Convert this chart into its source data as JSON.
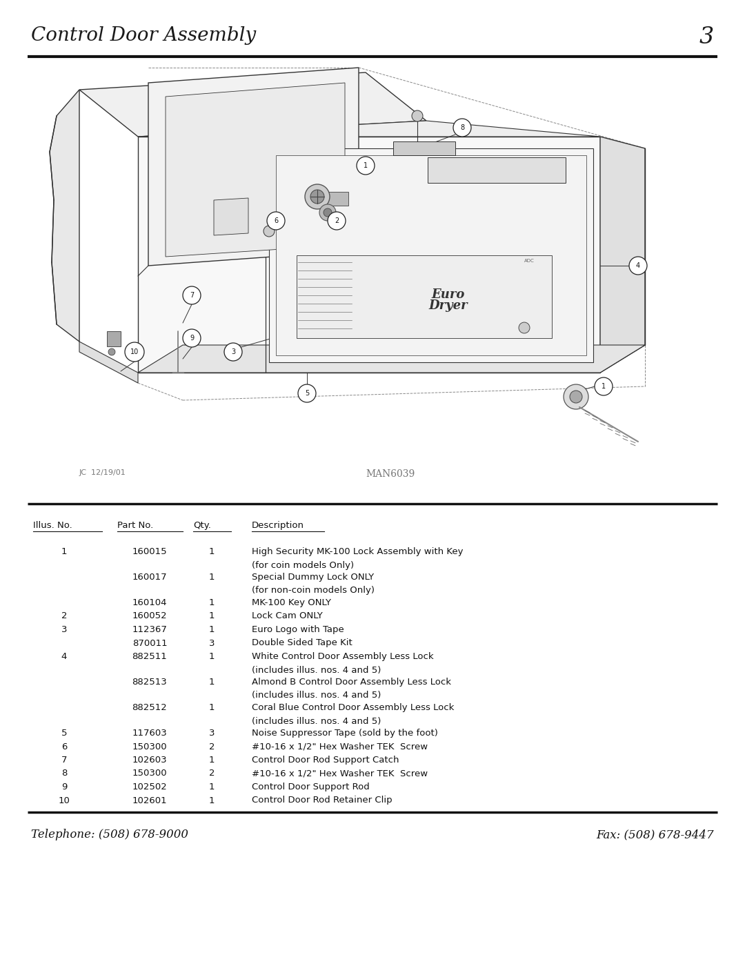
{
  "page_title": "Control Door Assembly",
  "page_number": "3",
  "bg_color": "#ffffff",
  "title_font_size": 20,
  "footer_left": "Telephone: (508) 678-9000",
  "footer_right": "Fax: (508) 678-9447",
  "footer_font_size": 12,
  "watermark_left": "JC  12/19/01",
  "watermark_right": "MAN6039",
  "table_headers": [
    "Illus. No.",
    "Part No.",
    "Qty.",
    "Description"
  ],
  "table_rows": [
    [
      "1",
      "160015",
      "1",
      "High Security MK-100 Lock Assembly with Key",
      "(for coin models Only)"
    ],
    [
      "",
      "160017",
      "1",
      "Special Dummy Lock ONLY",
      "(for non-coin models Only)"
    ],
    [
      "",
      "160104",
      "1",
      "MK-100 Key ONLY",
      ""
    ],
    [
      "2",
      "160052",
      "1",
      "Lock Cam ONLY",
      ""
    ],
    [
      "3",
      "112367",
      "1",
      "Euro Logo with Tape",
      ""
    ],
    [
      "",
      "870011",
      "3",
      "Double Sided Tape Kit",
      ""
    ],
    [
      "4",
      "882511",
      "1",
      "White Control Door Assembly Less Lock",
      "(includes illus. nos. 4 and 5)"
    ],
    [
      "",
      "882513",
      "1",
      "Almond B Control Door Assembly Less Lock",
      "(includes illus. nos. 4 and 5)"
    ],
    [
      "",
      "882512",
      "1",
      "Coral Blue Control Door Assembly Less Lock",
      "(includes illus. nos. 4 and 5)"
    ],
    [
      "5",
      "117603",
      "3",
      "Noise Suppressor Tape (sold by the foot)",
      ""
    ],
    [
      "6",
      "150300",
      "2",
      "#10-16 x 1/2\" Hex Washer TEK  Screw",
      ""
    ],
    [
      "7",
      "102603",
      "1",
      "Control Door Rod Support Catch",
      ""
    ],
    [
      "8",
      "150300",
      "2",
      "#10-16 x 1/2\" Hex Washer TEK  Screw",
      ""
    ],
    [
      "9",
      "102502",
      "1",
      "Control Door Support Rod",
      ""
    ],
    [
      "10",
      "102601",
      "1",
      "Control Door Rod Retainer Clip",
      ""
    ]
  ],
  "table_font_size": 9.5,
  "line_color": "#333333",
  "draw_color": "#444444"
}
